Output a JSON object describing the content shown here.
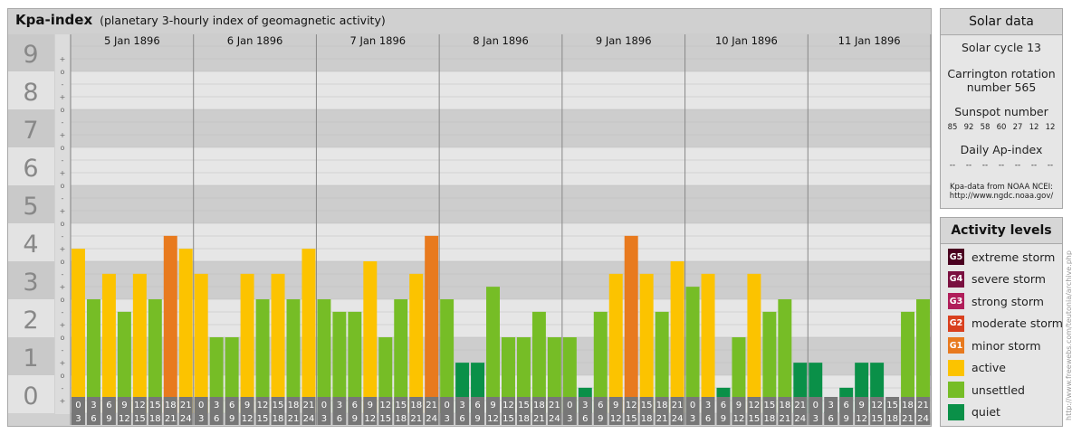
{
  "title": "Kpa-index",
  "subtitle": "(planetary 3-hourly index of geomagnetic activity)",
  "chart_data": {
    "type": "bar",
    "days": [
      "5 Jan 1896",
      "6 Jan 1896",
      "7 Jan 1896",
      "8 Jan 1896",
      "9 Jan 1896",
      "10 Jan 1896",
      "11 Jan 1896"
    ],
    "y_ticks": [
      "0",
      "1",
      "2",
      "3",
      "4",
      "5",
      "6",
      "7",
      "8",
      "9"
    ],
    "sub_ticks": [
      "-",
      "o",
      "+"
    ],
    "ylim": [
      0,
      9.33
    ],
    "interval_labels": [
      [
        "0",
        "3"
      ],
      [
        "3",
        "6"
      ],
      [
        "6",
        "9"
      ],
      [
        "9",
        "12"
      ],
      [
        "12",
        "15"
      ],
      [
        "15",
        "18"
      ],
      [
        "18",
        "21"
      ],
      [
        "21",
        "24"
      ]
    ],
    "values": [
      [
        4.33,
        3.0,
        3.67,
        2.67,
        3.67,
        3.0,
        4.67,
        4.33
      ],
      [
        3.67,
        2.0,
        2.0,
        3.67,
        3.0,
        3.67,
        3.0,
        4.33
      ],
      [
        3.0,
        2.67,
        2.67,
        4.0,
        2.0,
        3.0,
        3.67,
        4.67
      ],
      [
        3.0,
        1.33,
        1.33,
        3.33,
        2.0,
        2.0,
        2.67,
        2.0
      ],
      [
        2.0,
        0.67,
        2.67,
        3.67,
        4.67,
        3.67,
        2.67,
        4.0
      ],
      [
        3.33,
        3.67,
        0.67,
        2.0,
        3.67,
        2.67,
        3.0,
        1.33
      ],
      [
        1.33,
        0.0,
        0.67,
        1.33,
        1.33,
        0.33,
        2.67,
        3.0
      ]
    ],
    "level_colors": {
      "quiet": "#0a9048",
      "unsettled": "#76bd26",
      "active": "#fcc300",
      "G1": "#e87a1e",
      "G2": "#d9401e",
      "G3": "#b01e5a",
      "G4": "#7a1040",
      "G5": "#4a0020"
    }
  },
  "solar": {
    "heading": "Solar data",
    "cycle": "Solar cycle 13",
    "carrington_1": "Carrington rotation",
    "carrington_2": "number 565",
    "sunspot_label": "Sunspot number",
    "sunspots": [
      "85",
      "92",
      "58",
      "60",
      "27",
      "12",
      "12"
    ],
    "ap_label": "Daily Ap-index",
    "ap_values": [
      "--",
      "--",
      "--",
      "--",
      "--",
      "--",
      "--"
    ],
    "source_1": "Kpa-data from NOAA NCEI:",
    "source_2": "http://www.ngdc.noaa.gov/"
  },
  "activity": {
    "heading": "Activity levels",
    "levels": [
      {
        "badge": "G5",
        "label": "extreme storm",
        "color": "#4a0020"
      },
      {
        "badge": "G4",
        "label": "severe storm",
        "color": "#7a1040"
      },
      {
        "badge": "G3",
        "label": "strong storm",
        "color": "#b01e5a"
      },
      {
        "badge": "G2",
        "label": "moderate storm",
        "color": "#d9401e"
      },
      {
        "badge": "G1",
        "label": "minor storm",
        "color": "#e87a1e"
      },
      {
        "badge": "",
        "label": "active",
        "color": "#fcc300"
      },
      {
        "badge": "",
        "label": "unsettled",
        "color": "#76bd26"
      },
      {
        "badge": "",
        "label": "quiet",
        "color": "#0a9048"
      }
    ]
  },
  "watermark": "http://www.freewebs.com/teutonia/archive.php"
}
